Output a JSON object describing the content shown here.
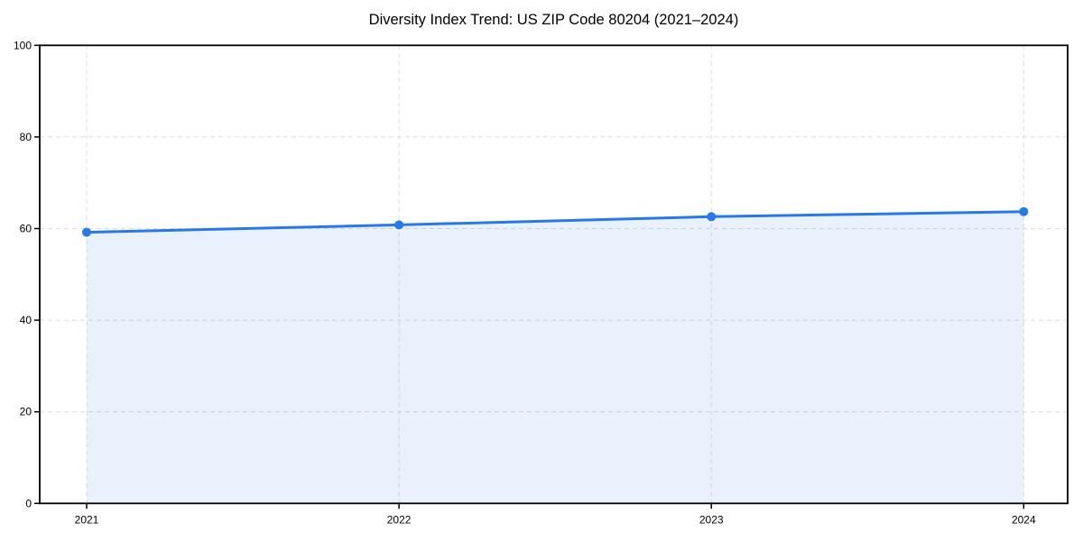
{
  "chart_data": {
    "type": "area",
    "title": "Diversity Index Trend: US ZIP Code 80204 (2021–2024)",
    "x": [
      2021,
      2022,
      2023,
      2024
    ],
    "series": [
      {
        "name": "Diversity Index",
        "values": [
          59.2,
          60.8,
          62.6,
          63.7
        ]
      }
    ],
    "xlabel": "",
    "ylabel": "",
    "xlim": [
      2020.85,
      2024.15
    ],
    "ylim": [
      0,
      100
    ],
    "yticks": [
      0,
      20,
      40,
      60,
      80,
      100
    ],
    "grid": "dashed, horizontal and vertical at ticks",
    "legend_position": "none",
    "colors": {
      "line": "#2878e8",
      "marker": "#2878e8",
      "fill": "rgba(40, 120, 232, 0.10)",
      "grid": "#dcdcdc",
      "axis": "#000000",
      "text": "#000000",
      "background": "#ffffff"
    }
  }
}
